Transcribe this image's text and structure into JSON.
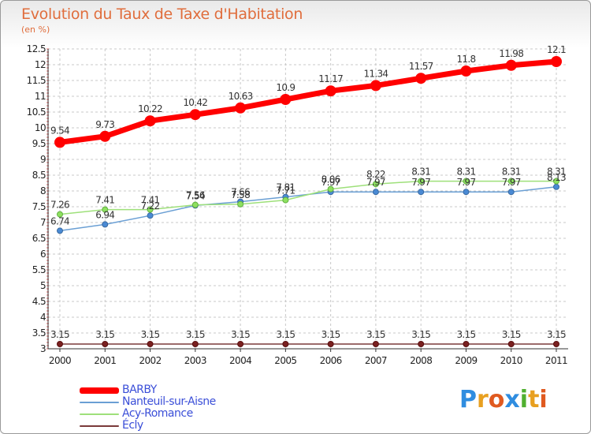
{
  "chart_data": {
    "type": "line",
    "title": "Evolution du Taux de Taxe d'Habitation",
    "subtitle": "(en %)",
    "x": [
      "2000",
      "2001",
      "2002",
      "2003",
      "2004",
      "2005",
      "2006",
      "2007",
      "2008",
      "2009",
      "2010",
      "2011"
    ],
    "ylim": [
      3,
      12.5
    ],
    "yticks": [
      "3",
      "3.5",
      "4",
      "4.5",
      "5",
      "5.5",
      "6",
      "6.5",
      "7",
      "7.5",
      "8",
      "8.5",
      "9",
      "9.5",
      "10",
      "10.5",
      "11",
      "11.5",
      "12",
      "12.5"
    ],
    "grid": true,
    "legend_position": "bottom-left",
    "series": [
      {
        "name": "BARBY",
        "color": "#ff0000",
        "values": [
          9.54,
          9.73,
          10.22,
          10.42,
          10.63,
          10.9,
          11.17,
          11.34,
          11.57,
          11.8,
          11.98,
          12.1
        ],
        "labels": [
          "9.54",
          "9.73",
          "10.22",
          "10.42",
          "10.63",
          "10.9",
          "11.17",
          "11.34",
          "11.57",
          "11.8",
          "11.98",
          "12.1"
        ]
      },
      {
        "name": "Nanteuil-sur-Aisne",
        "color": "#6a9fd4",
        "values": [
          6.74,
          6.94,
          7.22,
          7.54,
          7.66,
          7.81,
          7.97,
          7.97,
          7.97,
          7.97,
          7.97,
          8.13
        ],
        "labels": [
          "6.74",
          "6.94",
          "7.22",
          "7.54",
          "7.66",
          "7.81",
          "7.97",
          "7.97",
          "7.97",
          "7.97",
          "7.97",
          "8.13"
        ]
      },
      {
        "name": "Acy-Romance",
        "color": "#9ee07a",
        "values": [
          7.26,
          7.41,
          7.41,
          7.56,
          7.58,
          7.71,
          8.06,
          8.22,
          8.31,
          8.31,
          8.31,
          8.31
        ],
        "labels": [
          "7.26",
          "7.41",
          "7.41",
          "7.56",
          "7.58",
          "7.71",
          "8.06",
          "8.22",
          "8.31",
          "8.31",
          "8.31",
          "8.31"
        ]
      },
      {
        "name": "Écly",
        "color": "#7a3a3a",
        "values": [
          3.15,
          3.15,
          3.15,
          3.15,
          3.15,
          3.15,
          3.15,
          3.15,
          3.15,
          3.15,
          3.15,
          3.15
        ],
        "labels": [
          "3.15",
          "3.15",
          "3.15",
          "3.15",
          "3.15",
          "3.15",
          "3.15",
          "3.15",
          "3.15",
          "3.15",
          "3.15",
          "3.15"
        ]
      }
    ]
  },
  "logo": {
    "letters": [
      "P",
      "r",
      "o",
      "x",
      "i",
      "t",
      "i"
    ],
    "colors": [
      "#2f8de0",
      "#e8a020",
      "#e05a20",
      "#2f8de0",
      "#50b030",
      "#e8a020",
      "#e05a20"
    ]
  }
}
